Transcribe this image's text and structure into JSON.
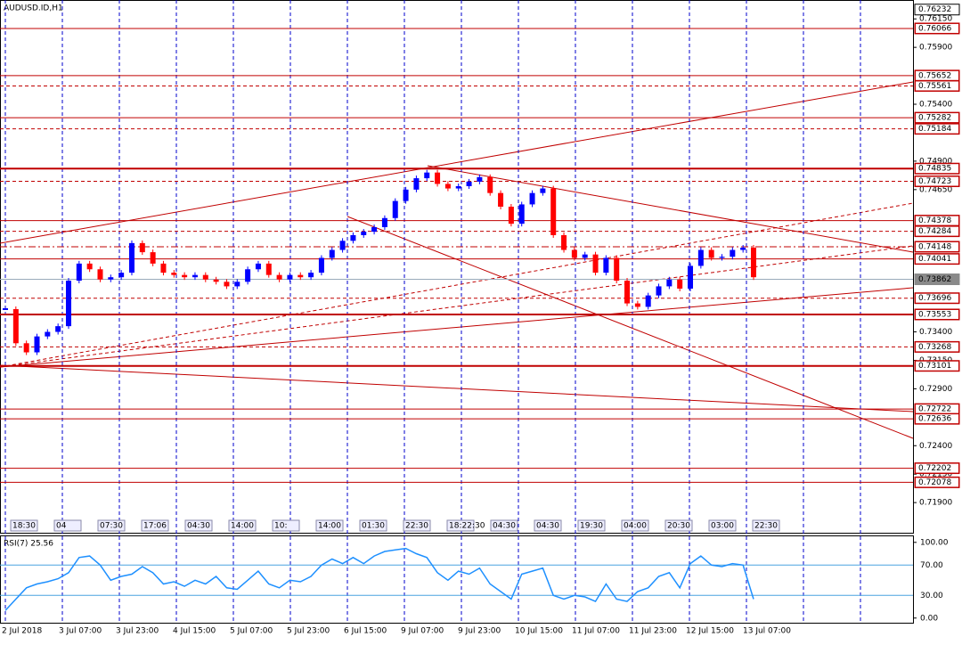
{
  "chart_data": {
    "type": "candlestick",
    "title": "AUDUSD.ID,H1",
    "categories": [
      "2 Jul 2018",
      "3 Jul 07:00",
      "3 Jul 23:00",
      "4 Jul 15:00",
      "5 Jul 07:00",
      "5 Jul 23:00",
      "6 Jul 15:00",
      "9 Jul 07:00",
      "9 Jul 23:00",
      "10 Jul 15:00",
      "11 Jul 07:00",
      "11 Jul 23:00",
      "12 Jul 15:00",
      "13 Jul 07:00"
    ],
    "ylim": [
      0.71635,
      0.76316
    ],
    "yticks": [
      {
        "value": 0.7615,
        "label": "0.76150"
      },
      {
        "value": 0.759,
        "label": "0.75900"
      },
      {
        "value": 0.754,
        "label": "0.75400"
      },
      {
        "value": 0.749,
        "label": "0.74900"
      },
      {
        "value": 0.7465,
        "label": "0.74650"
      },
      {
        "value": 0.734,
        "label": "0.73400"
      },
      {
        "value": 0.7315,
        "label": "0.73150"
      },
      {
        "value": 0.729,
        "label": "0.72900"
      },
      {
        "value": 0.724,
        "label": "0.72400"
      },
      {
        "value": 0.7215,
        "label": "0.72150"
      },
      {
        "value": 0.719,
        "label": "0.71900"
      }
    ],
    "levels": [
      {
        "value": 0.76232,
        "style": "top"
      },
      {
        "value": 0.76066,
        "style": "solid"
      },
      {
        "value": 0.75652,
        "style": "solid"
      },
      {
        "value": 0.75561,
        "style": "dashed"
      },
      {
        "value": 0.75282,
        "style": "solid"
      },
      {
        "value": 0.75184,
        "style": "dashed"
      },
      {
        "value": 0.74835,
        "style": "thick"
      },
      {
        "value": 0.74723,
        "style": "dashed"
      },
      {
        "value": 0.74378,
        "style": "solid"
      },
      {
        "value": 0.74284,
        "style": "dashed"
      },
      {
        "value": 0.74148,
        "style": "dashdot"
      },
      {
        "value": 0.74041,
        "style": "solid"
      },
      {
        "value": 0.73862,
        "style": "current"
      },
      {
        "value": 0.73696,
        "style": "dashed"
      },
      {
        "value": 0.73553,
        "style": "thick"
      },
      {
        "value": 0.73268,
        "style": "dashed"
      },
      {
        "value": 0.73101,
        "style": "thick"
      },
      {
        "value": 0.72722,
        "style": "solid"
      },
      {
        "value": 0.72636,
        "style": "solid"
      },
      {
        "value": 0.72202,
        "style": "solid"
      },
      {
        "value": 0.72078,
        "style": "solid"
      }
    ],
    "up_color": "#0000ff",
    "down_color": "#ff0000",
    "close": [
      0.736,
      0.733,
      0.7322,
      0.7336,
      0.734,
      0.7345,
      0.7385,
      0.74,
      0.7395,
      0.7386,
      0.7388,
      0.7392,
      0.7418,
      0.741,
      0.74,
      0.7392,
      0.739,
      0.7388,
      0.739,
      0.7386,
      0.7384,
      0.738,
      0.7384,
      0.7395,
      0.74,
      0.739,
      0.7386,
      0.739,
      0.7388,
      0.7392,
      0.7405,
      0.7412,
      0.742,
      0.7425,
      0.7428,
      0.7432,
      0.744,
      0.7455,
      0.7465,
      0.7475,
      0.748,
      0.747,
      0.7466,
      0.7468,
      0.7472,
      0.7476,
      0.7462,
      0.745,
      0.7435,
      0.7452,
      0.7462,
      0.7466,
      0.7425,
      0.7412,
      0.7405,
      0.7408,
      0.7392,
      0.7405,
      0.7385,
      0.7365,
      0.7362,
      0.7372,
      0.738,
      0.7386,
      0.7378,
      0.7398,
      0.7412,
      0.7405,
      0.7406,
      0.7412,
      0.7414,
      0.7388
    ],
    "time_tags": [
      "18:30",
      "04",
      "07:30",
      "17:06",
      "04:30",
      "14:00",
      "10:",
      "14:00",
      "01:30",
      "22:30",
      "18:22:30",
      "04:30",
      "04:30",
      "19:30",
      "04:00",
      "20:30",
      "03:00",
      "22:30"
    ],
    "rsi": {
      "title": "RSI(7) 25.56",
      "color": "#1e90ff",
      "ylim": [
        -5,
        108
      ],
      "yticks": [
        {
          "value": 100,
          "label": "100.00"
        },
        {
          "value": 70,
          "label": "70.00"
        },
        {
          "value": 30,
          "label": "30.00"
        },
        {
          "value": 0,
          "label": "0.00"
        }
      ],
      "values": [
        10,
        25,
        40,
        45,
        48,
        52,
        60,
        80,
        82,
        70,
        50,
        55,
        58,
        68,
        60,
        45,
        48,
        42,
        50,
        45,
        55,
        40,
        38,
        50,
        62,
        45,
        40,
        50,
        48,
        55,
        70,
        78,
        72,
        80,
        72,
        82,
        88,
        90,
        92,
        85,
        80,
        60,
        50,
        62,
        58,
        66,
        45,
        35,
        25,
        58,
        62,
        66,
        30,
        25,
        30,
        28,
        22,
        45,
        25,
        22,
        35,
        40,
        55,
        60,
        40,
        72,
        82,
        70,
        68,
        72,
        70,
        25
      ]
    }
  }
}
